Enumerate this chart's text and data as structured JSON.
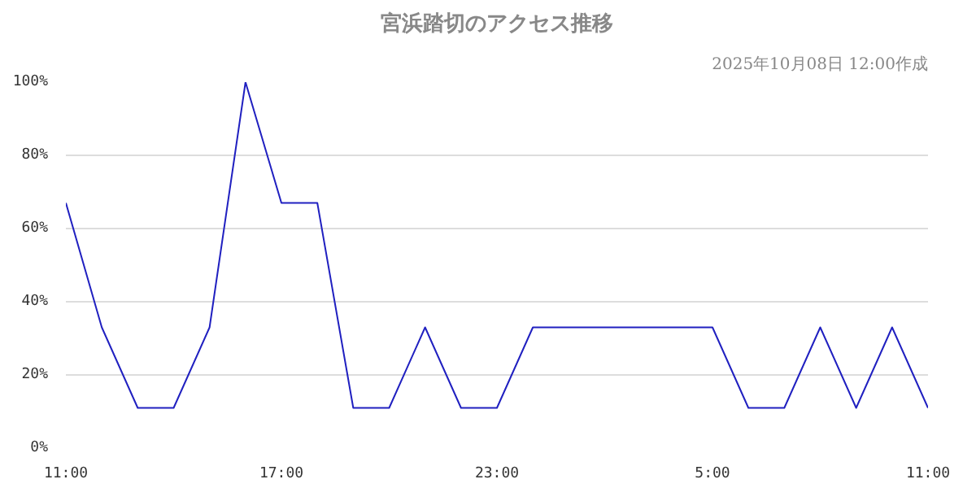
{
  "chart_data": {
    "type": "line",
    "title": "宮浜踏切のアクセス推移",
    "subtitle": "2025年10月08日 12:00作成",
    "x": [
      "2025-10-07T11:00",
      "2025-10-07T12:00",
      "2025-10-07T13:00",
      "2025-10-07T14:00",
      "2025-10-07T15:00",
      "2025-10-07T16:00",
      "2025-10-07T17:00",
      "2025-10-07T18:00",
      "2025-10-07T19:00",
      "2025-10-07T20:00",
      "2025-10-07T21:00",
      "2025-10-07T22:00",
      "2025-10-07T23:00",
      "2025-10-08T00:00",
      "2025-10-08T01:00",
      "2025-10-08T02:00",
      "2025-10-08T03:00",
      "2025-10-08T04:00",
      "2025-10-08T05:00",
      "2025-10-08T06:00",
      "2025-10-08T07:00",
      "2025-10-08T08:00",
      "2025-10-08T09:00",
      "2025-10-08T10:00",
      "2025-10-08T11:00"
    ],
    "series": [
      {
        "color": "#2020c0",
        "values": [
          67,
          33,
          11,
          11,
          33,
          100,
          67,
          67,
          11,
          11,
          33,
          11,
          11,
          33,
          33,
          33,
          33,
          33,
          33,
          11,
          11,
          33,
          11,
          33,
          11
        ]
      }
    ],
    "xlim": [
      "2025-10-07T11:00",
      "2025-10-08T11:00"
    ],
    "xticks": [
      {
        "value": "2025-10-07T11:00",
        "label": "11:00"
      },
      {
        "value": "2025-10-07T17:00",
        "label": "17:00"
      },
      {
        "value": "2025-10-07T23:00",
        "label": "23:00"
      },
      {
        "value": "2025-10-08T05:00",
        "label": "5:00"
      },
      {
        "value": "2025-10-08T11:00",
        "label": "11:00"
      }
    ],
    "ylim": [
      0,
      100
    ],
    "yticks": [
      {
        "value": 0,
        "label": "0%"
      },
      {
        "value": 20,
        "label": "20%"
      },
      {
        "value": 40,
        "label": "40%"
      },
      {
        "value": 60,
        "label": "60%"
      },
      {
        "value": 80,
        "label": "80%"
      },
      {
        "value": 100,
        "label": "100%"
      }
    ],
    "grid": "y",
    "marker": "none",
    "line_style": "solid"
  }
}
